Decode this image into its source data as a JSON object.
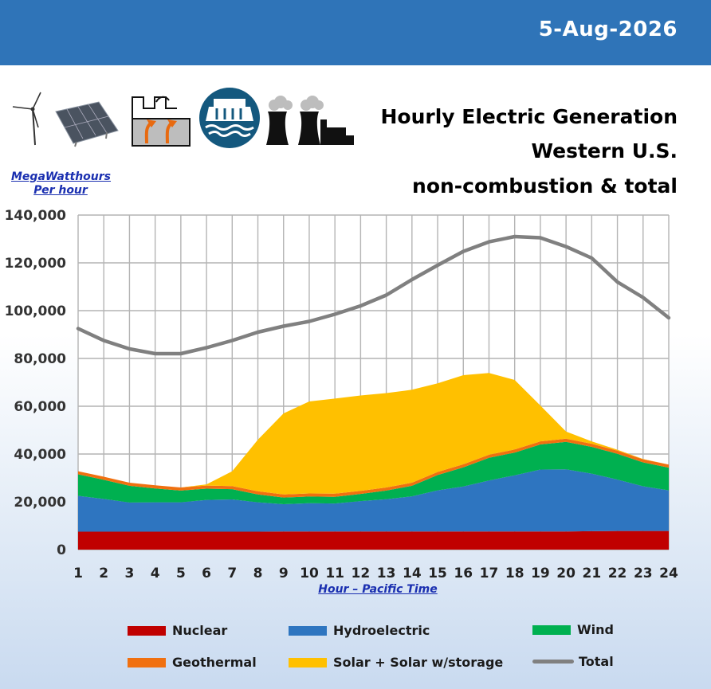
{
  "header": {
    "date": "5-Aug-2026",
    "title_lines": [
      "Hourly Electric Generation",
      "Western U.S.",
      "non-combustion & total"
    ]
  },
  "icons": [
    "wind-turbine-icon",
    "solar-panel-icon",
    "geothermal-plant-icon",
    "hydro-dam-icon",
    "nuclear-plant-icon"
  ],
  "colors": {
    "header_bar": "#2f74b8",
    "nuclear": "#c00000",
    "hydroelectric": "#2e75c0",
    "wind": "#00b050",
    "geothermal": "#f07010",
    "solar": "#ffc000",
    "total": "#808080"
  },
  "chart_data": {
    "type": "area",
    "title": "Hourly Electric Generation Western U.S. non-combustion & total",
    "ylabel": "MegaWatthours Per hour",
    "xlabel": "Hour – Pacific Time",
    "ylim": [
      0,
      140000
    ],
    "yticks": [
      0,
      20000,
      40000,
      60000,
      80000,
      100000,
      120000,
      140000
    ],
    "ytick_labels": [
      "0",
      "20,000",
      "40,000",
      "60,000",
      "80,000",
      "100,000",
      "120,000",
      "140,000"
    ],
    "x": [
      1,
      2,
      3,
      4,
      5,
      6,
      7,
      8,
      9,
      10,
      11,
      12,
      13,
      14,
      15,
      16,
      17,
      18,
      19,
      20,
      21,
      22,
      23,
      24
    ],
    "x_labels": [
      "1",
      "2",
      "3",
      "4",
      "5",
      "6",
      "7",
      "8",
      "9",
      "10",
      "11",
      "12",
      "13",
      "14",
      "15",
      "16",
      "17",
      "18",
      "19",
      "20",
      "21",
      "22",
      "23",
      "24"
    ],
    "grid": true,
    "stacked": true,
    "legend_position": "bottom",
    "series": [
      {
        "name": "Nuclear",
        "key": "nuclear",
        "kind": "area",
        "values": [
          7500,
          7500,
          7500,
          7500,
          7500,
          7500,
          7500,
          7500,
          7600,
          7600,
          7600,
          7600,
          7600,
          7600,
          7600,
          7600,
          7600,
          7600,
          7600,
          7600,
          7700,
          7800,
          7800,
          7800
        ]
      },
      {
        "name": "Hydroelectric",
        "key": "hydroelectric",
        "kind": "area",
        "values": [
          15000,
          13700,
          12200,
          12300,
          12300,
          13300,
          13500,
          12300,
          11400,
          11800,
          11700,
          12700,
          13500,
          14700,
          17200,
          18800,
          21300,
          23500,
          25900,
          26000,
          24100,
          21500,
          18700,
          17000
        ]
      },
      {
        "name": "Wind",
        "key": "wind",
        "kind": "area",
        "values": [
          9000,
          8000,
          7000,
          5800,
          4900,
          4700,
          4300,
          3300,
          2800,
          2800,
          2800,
          3000,
          3600,
          4400,
          6400,
          8000,
          9500,
          9500,
          10500,
          11500,
          11200,
          10800,
          10000,
          9500
        ]
      },
      {
        "name": "Geothermal",
        "key": "geothermal",
        "kind": "area",
        "values": [
          1300,
          1300,
          1300,
          1300,
          1300,
          1300,
          1300,
          1300,
          1300,
          1300,
          1300,
          1300,
          1300,
          1300,
          1300,
          1300,
          1300,
          1300,
          1300,
          1300,
          1300,
          1300,
          1300,
          1300
        ]
      },
      {
        "name": "Solar + Solar w/storage",
        "key": "solar",
        "kind": "area",
        "values": [
          0,
          0,
          0,
          0,
          0,
          500,
          6200,
          21600,
          33900,
          38500,
          39800,
          39900,
          39500,
          38900,
          37100,
          37300,
          34200,
          29100,
          15000,
          3000,
          1000,
          400,
          100,
          0
        ]
      },
      {
        "name": "Total",
        "key": "total",
        "kind": "line",
        "values": [
          92500,
          87500,
          84000,
          82000,
          82000,
          84500,
          87500,
          91000,
          93500,
          95500,
          98500,
          102000,
          106500,
          113000,
          119000,
          124800,
          128800,
          131000,
          130500,
          126800,
          122000,
          112000,
          105500,
          97000
        ]
      }
    ]
  },
  "legend": [
    {
      "label": "Nuclear",
      "key": "nuclear",
      "kind": "swatch"
    },
    {
      "label": "Hydroelectric",
      "key": "hydroelectric",
      "kind": "swatch"
    },
    {
      "label": "Wind",
      "key": "wind",
      "kind": "swatch"
    },
    {
      "label": "Geothermal",
      "key": "geothermal",
      "kind": "swatch"
    },
    {
      "label": "Solar + Solar w/storage",
      "key": "solar",
      "kind": "swatch"
    },
    {
      "label": "Total",
      "key": "total",
      "kind": "line"
    }
  ]
}
